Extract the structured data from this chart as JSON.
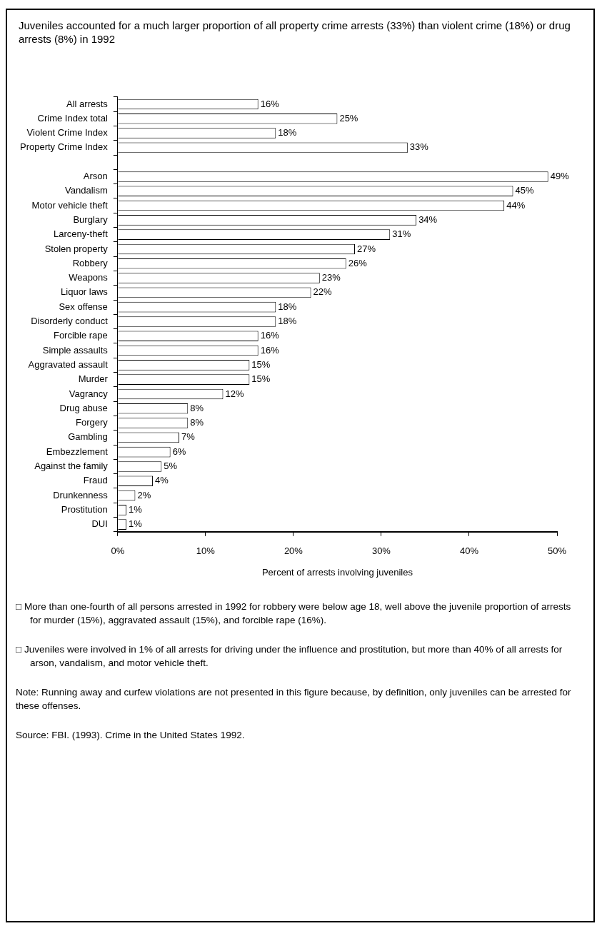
{
  "chart_data": {
    "type": "bar",
    "orientation": "horizontal",
    "title": "Juveniles accounted for a much larger proportion of all property crime arrests (33%) than violent crime (18%) or drug arrests (8%) in 1992",
    "categories": [
      "All arrests",
      "Crime Index total",
      "Violent Crime Index",
      "Property Crime Index",
      null,
      "Arson",
      "Vandalism",
      "Motor vehicle theft",
      "Burglary",
      "Larceny-theft",
      "Stolen property",
      "Robbery",
      "Weapons",
      "Liquor laws",
      "Sex offense",
      "Disorderly conduct",
      "Forcible rape",
      "Simple assaults",
      "Aggravated assault",
      "Murder",
      "Vagrancy",
      "Drug abuse",
      "Forgery",
      "Gambling",
      "Embezzlement",
      "Against the family",
      "Fraud",
      "Drunkenness",
      "Prostitution",
      "DUI"
    ],
    "values": [
      16,
      25,
      18,
      33,
      null,
      49,
      45,
      44,
      34,
      31,
      27,
      26,
      23,
      22,
      18,
      18,
      16,
      16,
      15,
      15,
      12,
      8,
      8,
      7,
      6,
      5,
      4,
      2,
      1,
      1
    ],
    "value_labels": [
      "16%",
      "25%",
      "18%",
      "33%",
      null,
      "49%",
      "45%",
      "44%",
      "34%",
      "31%",
      "27%",
      "26%",
      "23%",
      "22%",
      "18%",
      "18%",
      "16%",
      "16%",
      "15%",
      "15%",
      "12%",
      "8%",
      "8%",
      "7%",
      "6%",
      "5%",
      "4%",
      "2%",
      "1%",
      "1%"
    ],
    "color": "#ffffff",
    "xlabel": "Percent of arrests involving juveniles",
    "xlim": [
      0,
      50
    ],
    "xticks": [
      {
        "value": 0,
        "label": "0%"
      },
      {
        "value": 10,
        "label": "10%"
      },
      {
        "value": 20,
        "label": "20%"
      },
      {
        "value": 30,
        "label": "30%"
      },
      {
        "value": 40,
        "label": "40%"
      },
      {
        "value": 50,
        "label": "50%"
      }
    ],
    "grid": false,
    "legend": false,
    "annotations": [
      "□ More than one-fourth of all persons arrested in 1992 for robbery were below age 18, well above the juvenile proportion of arrests for murder (15%), aggravated assault (15%), and forcible rape (16%).",
      "□ Juveniles were involved in 1% of all arrests for driving under the influence and prostitution, but more than 40% of all arrests for arson, vandalism, and motor vehicle theft.",
      "Note: Running away and curfew violations are not presented in this figure because, by definition, only juveniles can be arrested for these offenses.",
      "Source: FBI. (1993). Crime in the United States 1992."
    ]
  }
}
